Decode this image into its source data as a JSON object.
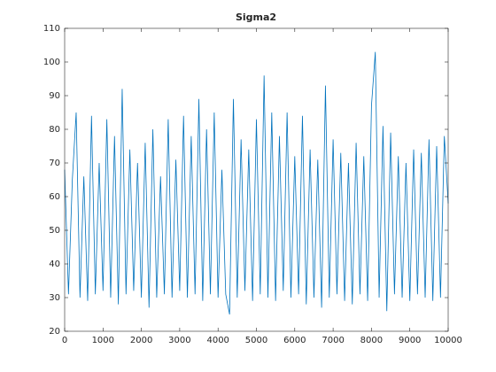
{
  "chart_data": {
    "type": "line",
    "title": "Sigma2",
    "color": "#0072bd",
    "x": [
      0,
      100,
      200,
      300,
      400,
      500,
      600,
      700,
      800,
      900,
      1000,
      1100,
      1200,
      1300,
      1400,
      1500,
      1600,
      1700,
      1800,
      1900,
      2000,
      2100,
      2200,
      2300,
      2400,
      2500,
      2600,
      2700,
      2800,
      2900,
      3000,
      3100,
      3200,
      3300,
      3400,
      3500,
      3600,
      3700,
      3800,
      3900,
      4000,
      4100,
      4200,
      4300,
      4400,
      4500,
      4600,
      4700,
      4800,
      4900,
      5000,
      5100,
      5200,
      5300,
      5400,
      5500,
      5600,
      5700,
      5800,
      5900,
      6000,
      6100,
      6200,
      6300,
      6400,
      6500,
      6600,
      6700,
      6800,
      6900,
      7000,
      7100,
      7200,
      7300,
      7400,
      7500,
      7600,
      7700,
      7800,
      7900,
      8000,
      8100,
      8200,
      8300,
      8400,
      8500,
      8600,
      8700,
      8800,
      8900,
      9000,
      9100,
      9200,
      9300,
      9400,
      9500,
      9600,
      9700,
      9800,
      9900,
      10000
    ],
    "values": [
      68,
      31,
      65,
      85,
      30,
      66,
      29,
      84,
      31,
      70,
      32,
      83,
      30,
      78,
      28,
      92,
      31,
      74,
      32,
      70,
      30,
      76,
      27,
      80,
      30,
      66,
      31,
      83,
      30,
      71,
      32,
      84,
      30,
      78,
      31,
      89,
      29,
      80,
      31,
      85,
      30,
      68,
      31,
      25,
      89,
      30,
      77,
      32,
      74,
      29,
      83,
      31,
      96,
      30,
      85,
      29,
      78,
      32,
      85,
      30,
      72,
      31,
      84,
      28,
      74,
      30,
      71,
      27,
      93,
      30,
      77,
      31,
      73,
      29,
      70,
      28,
      76,
      31,
      72,
      29,
      87,
      103,
      30,
      81,
      26,
      79,
      31,
      72,
      30,
      70,
      29,
      74,
      31,
      73,
      30,
      77,
      29,
      75,
      30,
      78,
      58
    ],
    "xlim": [
      0,
      10000
    ],
    "xticks": [
      0,
      1000,
      2000,
      3000,
      4000,
      5000,
      6000,
      7000,
      8000,
      9000,
      10000
    ],
    "ylim": [
      20,
      110
    ],
    "yticks": [
      20,
      30,
      40,
      50,
      60,
      70,
      80,
      90,
      100,
      110
    ]
  }
}
